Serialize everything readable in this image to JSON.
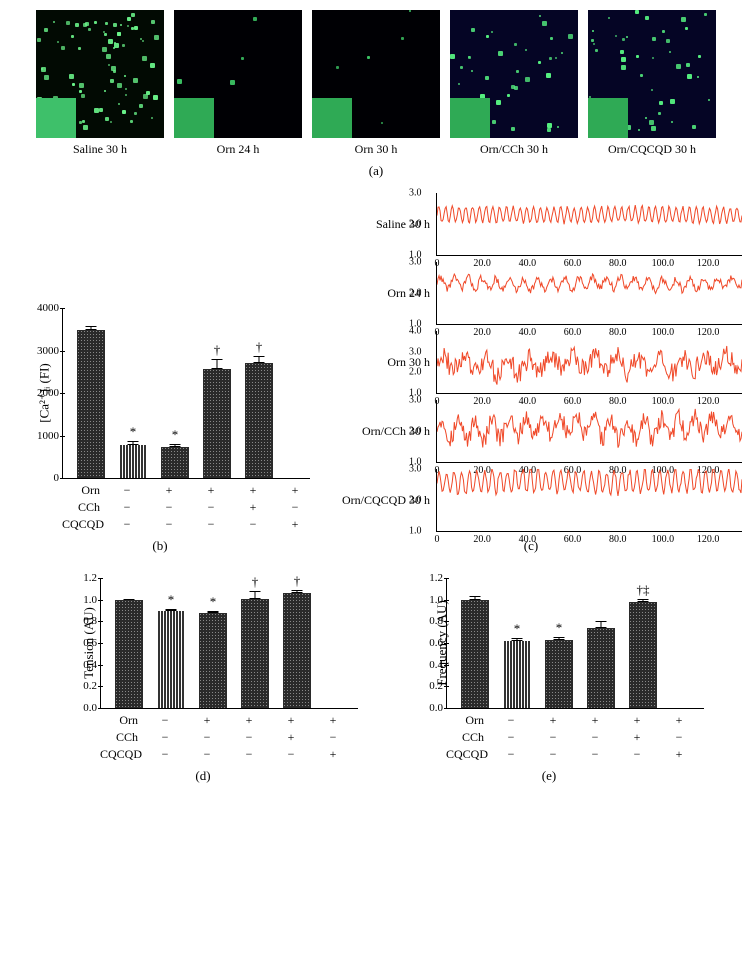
{
  "panel_a": {
    "images": [
      {
        "label": "Saline 30 h",
        "bg": "#020a03",
        "inset": "#3ec06a",
        "speck_count": 80,
        "speck_color": "#6af58a"
      },
      {
        "label": "Orn 24 h",
        "bg": "#000004",
        "inset": "#2faa55",
        "speck_count": 4,
        "speck_color": "#3fd06a"
      },
      {
        "label": "Orn 30 h",
        "bg": "#000004",
        "inset": "#2faa55",
        "speck_count": 6,
        "speck_color": "#3fd06a"
      },
      {
        "label": "Orn/CCh 30 h",
        "bg": "#050525",
        "inset": "#2faa55",
        "speck_count": 35,
        "speck_color": "#55f080"
      },
      {
        "label": "Orn/CQCQD 30 h",
        "bg": "#050525",
        "inset": "#2faa55",
        "speck_count": 45,
        "speck_color": "#55f080"
      }
    ],
    "letter": "(a)"
  },
  "panel_b": {
    "ylabel": "[Ca²⁺]ᵢ (FI)",
    "ylim": [
      0,
      4000
    ],
    "ytick_step": 1000,
    "bars": [
      {
        "value": 3480,
        "err": 100,
        "pattern": "dot",
        "sig": ""
      },
      {
        "value": 780,
        "err": 80,
        "pattern": "stripe",
        "sig": "*"
      },
      {
        "value": 730,
        "err": 70,
        "pattern": "dot",
        "sig": "*"
      },
      {
        "value": 2560,
        "err": 230,
        "pattern": "dot",
        "sig": "†"
      },
      {
        "value": 2700,
        "err": 160,
        "pattern": "dot",
        "sig": "†"
      }
    ],
    "treatments": {
      "rows": [
        "Orn",
        "CCh",
        "CQCQD"
      ],
      "grid": [
        [
          "−",
          "+",
          "+",
          "+",
          "+"
        ],
        [
          "−",
          "−",
          "−",
          "+",
          "−"
        ],
        [
          "−",
          "−",
          "−",
          "−",
          "+"
        ]
      ]
    },
    "letter": "(b)"
  },
  "panel_c": {
    "traces": [
      {
        "label": "Saline 30 h",
        "ylim": [
          1.0,
          3.0
        ],
        "baseline": 2.3,
        "amp": 0.25,
        "freq": 45,
        "irreg": 0.05
      },
      {
        "label": "Orn 24 h",
        "ylim": [
          1.0,
          3.0
        ],
        "baseline": 2.3,
        "amp": 0.18,
        "freq": 22,
        "irreg": 0.12
      },
      {
        "label": "Orn 30 h",
        "ylim": [
          1.0,
          4.0
        ],
        "baseline": 2.4,
        "amp": 0.35,
        "freq": 14,
        "irreg": 0.5
      },
      {
        "label": "Orn/CCh 30 h",
        "ylim": [
          1.0,
          3.0
        ],
        "baseline": 2.1,
        "amp": 0.3,
        "freq": 18,
        "irreg": 0.3
      },
      {
        "label": "Orn/CQCQD 30 h",
        "ylim": [
          1.0,
          3.0
        ],
        "baseline": 2.6,
        "amp": 0.35,
        "freq": 40,
        "irreg": 0.1
      }
    ],
    "xlim": [
      0,
      135
    ],
    "xtick_step": 20,
    "trace_color": "#f04a2a",
    "letter": "(c)"
  },
  "panel_d": {
    "ylabel": "Tension (AU)",
    "ylim": [
      0,
      1.2
    ],
    "ytick_step": 0.2,
    "bars": [
      {
        "value": 1.0,
        "err": 0.01,
        "pattern": "dot",
        "sig": ""
      },
      {
        "value": 0.9,
        "err": 0.01,
        "pattern": "stripe",
        "sig": "*"
      },
      {
        "value": 0.88,
        "err": 0.02,
        "pattern": "dot",
        "sig": "*"
      },
      {
        "value": 1.01,
        "err": 0.07,
        "pattern": "dot",
        "sig": "†"
      },
      {
        "value": 1.06,
        "err": 0.03,
        "pattern": "dot",
        "sig": "†"
      }
    ],
    "treatments": {
      "rows": [
        "Orn",
        "CCh",
        "CQCQD"
      ],
      "grid": [
        [
          "−",
          "+",
          "+",
          "+",
          "+"
        ],
        [
          "−",
          "−",
          "−",
          "+",
          "−"
        ],
        [
          "−",
          "−",
          "−",
          "−",
          "+"
        ]
      ]
    },
    "letter": "(d)"
  },
  "panel_e": {
    "ylabel": "Frequency (AU)",
    "ylim": [
      0,
      1.2
    ],
    "ytick_step": 0.2,
    "bars": [
      {
        "value": 1.0,
        "err": 0.03,
        "pattern": "dot",
        "sig": ""
      },
      {
        "value": 0.62,
        "err": 0.03,
        "pattern": "stripe",
        "sig": "*"
      },
      {
        "value": 0.63,
        "err": 0.03,
        "pattern": "dot",
        "sig": "*"
      },
      {
        "value": 0.74,
        "err": 0.06,
        "pattern": "dot",
        "sig": ""
      },
      {
        "value": 0.98,
        "err": 0.03,
        "pattern": "dot",
        "sig": "†‡"
      }
    ],
    "treatments": {
      "rows": [
        "Orn",
        "CCh",
        "CQCQD"
      ],
      "grid": [
        [
          "−",
          "+",
          "+",
          "+",
          "+"
        ],
        [
          "−",
          "−",
          "−",
          "+",
          "−"
        ],
        [
          "−",
          "−",
          "−",
          "−",
          "+"
        ]
      ]
    },
    "letter": "(e)"
  },
  "colors": {
    "trace": "#f04a2a",
    "bar_fill": "#2a2a2a",
    "axis": "#000000",
    "bg": "#ffffff"
  }
}
